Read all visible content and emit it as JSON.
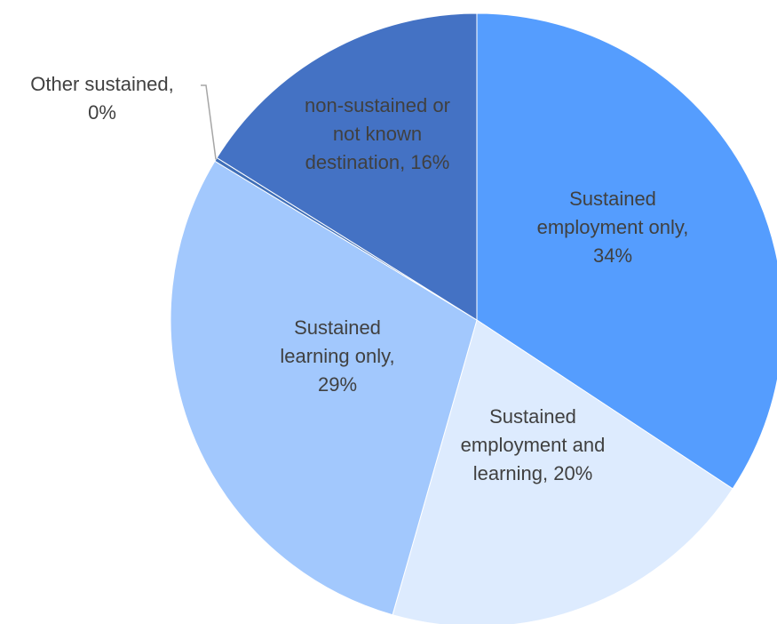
{
  "chart_data": {
    "type": "pie",
    "title": "",
    "slices": [
      {
        "label": "Sustained employment only",
        "value": 34,
        "color": "#559DFE",
        "label_lines": [
          "Sustained",
          "employment only,",
          "34%"
        ]
      },
      {
        "label": "Sustained employment and learning",
        "value": 20,
        "color": "#DDEBFE",
        "label_lines": [
          "Sustained",
          "employment and",
          "learning, 20%"
        ]
      },
      {
        "label": "Sustained learning only",
        "value": 29,
        "color": "#A2C8FD",
        "label_lines": [
          "Sustained",
          "learning only,",
          "29%"
        ]
      },
      {
        "label": "Other sustained",
        "value": 0.2,
        "display_value": "0%",
        "color": "#3F6FB8",
        "label_lines": [
          "Other sustained,",
          "0%"
        ]
      },
      {
        "label": "non-sustained or not known destination",
        "value": 16,
        "color": "#4472C4",
        "label_lines": [
          "non-sustained or",
          "not known",
          "destination, 16%"
        ]
      }
    ],
    "start_angle": "12 o'clock",
    "direction": "clockwise",
    "legend": "none"
  }
}
